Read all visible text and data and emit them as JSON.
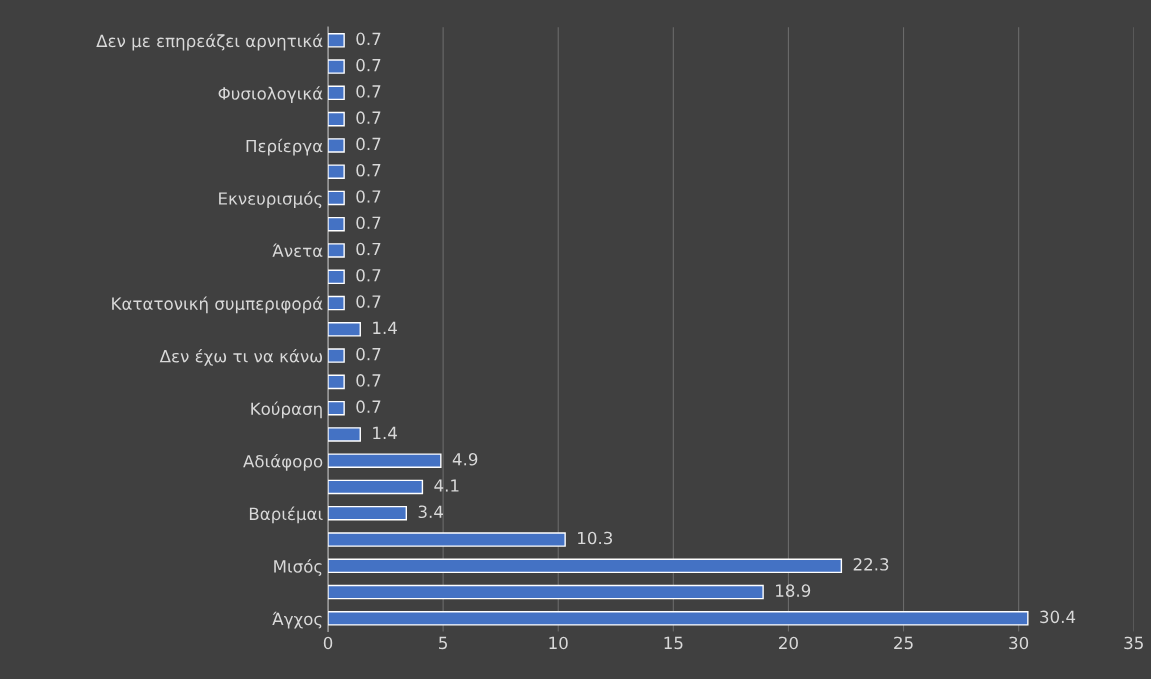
{
  "chart_data": {
    "type": "bar",
    "orientation": "horizontal",
    "categories": [
      "Δεν με επηρεάζει αρνητικά",
      null,
      "Φυσιολογικά",
      null,
      "Περίεργα",
      null,
      "Εκνευρισμός",
      null,
      "Άνετα",
      null,
      "Κατατονική συμπεριφορά",
      null,
      "Δεν έχω τι να κάνω",
      null,
      "Κούραση",
      null,
      "Αδιάφορο",
      null,
      "Βαριέμαι",
      null,
      "Μισός",
      null,
      "Άγχος"
    ],
    "values": [
      0.7,
      0.7,
      0.7,
      0.7,
      0.7,
      0.7,
      0.7,
      0.7,
      0.7,
      0.7,
      0.7,
      1.4,
      0.7,
      0.7,
      0.7,
      1.4,
      4.9,
      4.1,
      3.4,
      10.3,
      22.3,
      18.9,
      30.4
    ],
    "color": "#4472c4",
    "xlim": [
      0,
      35
    ],
    "xticks": [
      0,
      5,
      10,
      15,
      20,
      25,
      30,
      35
    ],
    "grid": "x",
    "data_labels": true
  }
}
